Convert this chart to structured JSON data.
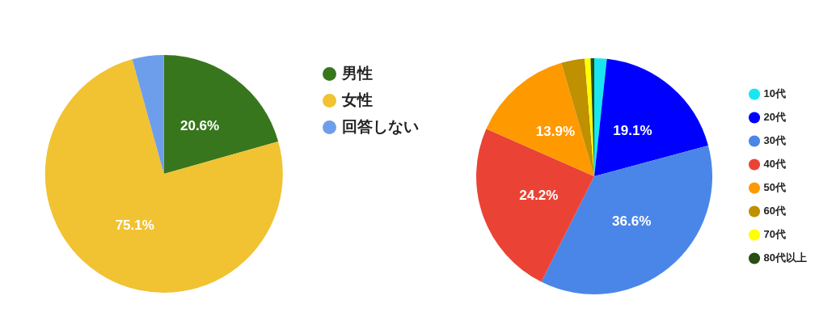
{
  "chart_data": [
    {
      "type": "pie",
      "categories": [
        "男性",
        "女性",
        "回答しない"
      ],
      "values": [
        20.6,
        75.1,
        4.3
      ],
      "colors": [
        "#38761d",
        "#f1c232",
        "#6d9eeb"
      ],
      "value_labels": [
        "20.6%",
        "75.1%",
        null
      ],
      "legend": "top right"
    },
    {
      "type": "pie",
      "categories": [
        "10代",
        "20代",
        "30代",
        "40代",
        "50代",
        "60代",
        "70代",
        "80代以上"
      ],
      "values": [
        1.7,
        19.1,
        36.6,
        24.2,
        13.9,
        3.2,
        0.8,
        0.5
      ],
      "colors": [
        "#19e6f0",
        "#0000ff",
        "#4a86e8",
        "#ea4335",
        "#ff9900",
        "#bf9000",
        "#ffff00",
        "#274e13"
      ],
      "value_labels": [
        null,
        "19.1%",
        "36.6%",
        "24.2%",
        "13.9%",
        null,
        null,
        null
      ],
      "legend": "right"
    }
  ]
}
